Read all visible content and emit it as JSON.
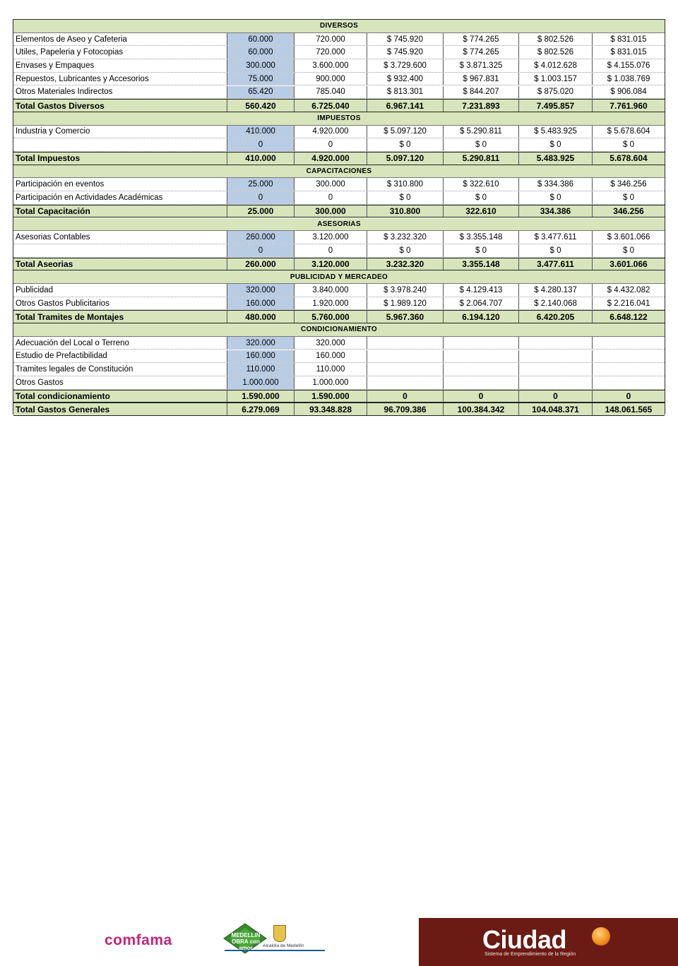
{
  "table": {
    "rows": [
      {
        "kind": "section",
        "label": "DIVERSOS"
      },
      {
        "kind": "data",
        "cells": [
          "Elementos de Aseo y Cafeteria",
          "60.000",
          "720.000",
          "$ 745.920",
          "$ 774.265",
          "$ 802.526",
          "$ 831.015"
        ]
      },
      {
        "kind": "data",
        "cells": [
          "Utiles, Papeleria y Fotocopias",
          "60.000",
          "720.000",
          "$ 745.920",
          "$ 774.265",
          "$ 802.526",
          "$ 831.015"
        ]
      },
      {
        "kind": "data",
        "cells": [
          "Envases y Empaques",
          "300.000",
          "3.600.000",
          "$ 3.729.600",
          "$ 3.871.325",
          "$ 4.012.628",
          "$ 4.155.076"
        ]
      },
      {
        "kind": "data",
        "cells": [
          "Repuestos, Lubricantes y Accesorios",
          "75.000",
          "900.000",
          "$ 932.400",
          "$ 967.831",
          "$ 1.003.157",
          "$ 1.038.769"
        ]
      },
      {
        "kind": "data",
        "cells": [
          " Otros Materiales Indirectos",
          "65.420",
          "785.040",
          "$ 813.301",
          "$ 844.207",
          "$ 875.020",
          "$ 906.084"
        ]
      },
      {
        "kind": "total",
        "cells": [
          "Total Gastos Diversos",
          "560.420",
          "6.725.040",
          "6.967.141",
          "7.231.893",
          "7.495.857",
          "7.761.960"
        ]
      },
      {
        "kind": "section",
        "label": "IMPUESTOS"
      },
      {
        "kind": "data",
        "cells": [
          "Industria y Comercio",
          "410.000",
          "4.920.000",
          "$ 5.097.120",
          "$ 5.290.811",
          "$ 5.483.925",
          "$ 5.678.604"
        ]
      },
      {
        "kind": "data",
        "cells": [
          "",
          "0",
          "0",
          "$ 0",
          "$ 0",
          "$ 0",
          "$ 0"
        ]
      },
      {
        "kind": "total",
        "cells": [
          "Total Impuestos",
          "410.000",
          "4.920.000",
          "5.097.120",
          "5.290.811",
          "5.483.925",
          "5.678.604"
        ]
      },
      {
        "kind": "section",
        "label": "CAPACITACIONES"
      },
      {
        "kind": "data",
        "cells": [
          "Participación en eventos",
          "25.000",
          "300.000",
          "$ 310.800",
          "$ 322.610",
          "$ 334.386",
          "$ 346.256"
        ]
      },
      {
        "kind": "data",
        "cells": [
          "Participación en Actividades Académicas",
          "0",
          "0",
          "$ 0",
          "$ 0",
          "$ 0",
          "$ 0"
        ]
      },
      {
        "kind": "total",
        "cells": [
          "Total Capacitación",
          "25.000",
          "300.000",
          "310.800",
          "322.610",
          "334.386",
          "346.256"
        ]
      },
      {
        "kind": "section",
        "label": "ASESORIAS"
      },
      {
        "kind": "data",
        "cells": [
          "Asesorias Contables",
          "260.000",
          "3.120.000",
          "$ 3.232.320",
          "$ 3.355.148",
          "$ 3.477.611",
          "$ 3.601.066"
        ]
      },
      {
        "kind": "data",
        "cells": [
          "",
          "0",
          "0",
          "$ 0",
          "$ 0",
          "$ 0",
          "$ 0"
        ]
      },
      {
        "kind": "total",
        "cells": [
          "Total Aseorias",
          "260.000",
          "3.120.000",
          "3.232.320",
          "3.355.148",
          "3.477.611",
          "3.601.066"
        ]
      },
      {
        "kind": "section",
        "label": "PUBLICIDAD Y MERCADEO"
      },
      {
        "kind": "data",
        "cells": [
          "Publicidad",
          "320.000",
          "3.840.000",
          "$ 3.978.240",
          "$ 4.129.413",
          "$ 4.280.137",
          "$ 4.432.082"
        ]
      },
      {
        "kind": "data",
        "cells": [
          "Otros Gastos Publicitarios",
          "160.000",
          "1.920.000",
          "$ 1.989.120",
          "$ 2.064.707",
          "$ 2.140.068",
          "$ 2.216.041"
        ]
      },
      {
        "kind": "total",
        "cells": [
          "Total Tramites de Montajes",
          "480.000",
          "5.760.000",
          "5.967.360",
          "6.194.120",
          "6.420.205",
          "6.648.122"
        ]
      },
      {
        "kind": "section",
        "label": "CONDICIONAMIENTO"
      },
      {
        "kind": "data",
        "cells": [
          "Adecuación del Local o Terreno",
          "320.000",
          "320.000",
          "",
          "",
          "",
          ""
        ]
      },
      {
        "kind": "data",
        "cells": [
          "Estudio de Prefactibilidad",
          "160.000",
          "160.000",
          "",
          "",
          "",
          ""
        ]
      },
      {
        "kind": "data",
        "cells": [
          "Tramites legales de Constitución",
          "110.000",
          "110.000",
          "",
          "",
          "",
          ""
        ]
      },
      {
        "kind": "data",
        "cells": [
          "Otros Gastos",
          "1.000.000",
          "1.000.000",
          "",
          "",
          "",
          ""
        ]
      },
      {
        "kind": "total",
        "cells": [
          "Total condicionamiento",
          "1.590.000",
          "1.590.000",
          "0",
          "0",
          "0",
          "0"
        ]
      },
      {
        "kind": "total",
        "cells": [
          "Total Gastos Generales",
          "6.279.069",
          "93.348.828",
          "96.709.386",
          "100.384.342",
          "104.048.371",
          "148.061.565"
        ]
      }
    ]
  },
  "footer": {
    "comfama": "comfama",
    "obra_text": "MEDELLIN OBRA con amor",
    "alcaldia": "Alcaldía de Medellín",
    "ciudad": "Ciudad",
    "ciudad_sub": "Sistema de Emprendimiento de la Región",
    "colors": {
      "comfama": "#c0267a",
      "ciudad_bg": "#6b1a14",
      "obra_green": "#3a8a2e"
    }
  }
}
